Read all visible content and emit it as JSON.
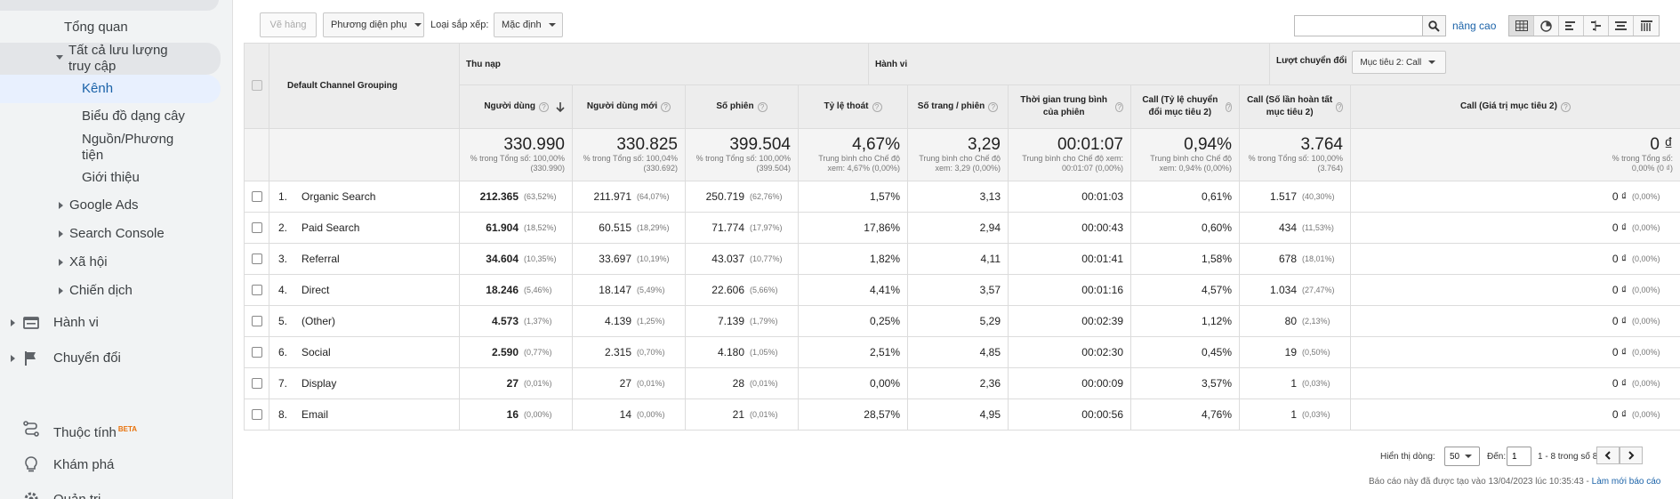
{
  "sidebar": {
    "items": {
      "overview": "Tổng quan",
      "all_traffic": "Tất cả lưu lượng truy cập",
      "channels": "Kênh",
      "treemaps": "Biểu đồ dạng cây",
      "source_medium": "Nguồn/Phương tiện",
      "referrals": "Giới thiệu",
      "google_ads": "Google Ads",
      "search_console": "Search Console",
      "social": "Xã hội",
      "campaigns": "Chiến dịch",
      "behavior": "Hành vi",
      "conversions": "Chuyển đổi",
      "attribution": "Thuộc tính",
      "attribution_badge": "BETA",
      "discover": "Khám phá",
      "admin": "Quản trị"
    }
  },
  "toolbar": {
    "plot_rows": "Vẽ hàng",
    "secondary_dimension": "Phương diện phụ",
    "sort_type_label": "Loại sắp xếp:",
    "sort_type_value": "Mặc định",
    "search_value": "",
    "advanced": "nâng cao",
    "views": [
      "table-view-icon",
      "pie-view-icon",
      "performance-view-icon",
      "comparison-view-icon",
      "term-cloud-view-icon",
      "pivot-view-icon"
    ]
  },
  "table": {
    "dimension_header": "Default Channel Grouping",
    "groups": {
      "acquisition": "Thu nạp",
      "behavior": "Hành vi",
      "conversions": "Lượt chuyển đổi",
      "goal_select": "Mục tiêu 2: Call"
    },
    "columns": [
      "Người dùng",
      "Người dùng mới",
      "Số phiên",
      "Tỷ lệ thoát",
      "Số trang / phiên",
      "Thời gian trung bình của phiên",
      "Call (Tỷ lệ chuyển đổi mục tiêu 2)",
      "Call (Số lần hoàn tất mục tiêu 2)",
      "Call (Giá trị mục tiêu 2)"
    ],
    "totals": [
      {
        "value": "330.990",
        "sub1": "% trong Tổng số: 100,00%",
        "sub2": "(330.990)"
      },
      {
        "value": "330.825",
        "sub1": "% trong Tổng số: 100,04%",
        "sub2": "(330.692)"
      },
      {
        "value": "399.504",
        "sub1": "% trong Tổng số: 100,00%",
        "sub2": "(399.504)"
      },
      {
        "value": "4,67%",
        "sub1": "Trung bình cho Chế độ",
        "sub2": "xem: 4,67% (0,00%)"
      },
      {
        "value": "3,29",
        "sub1": "Trung bình cho Chế độ",
        "sub2": "xem: 3,29 (0,00%)"
      },
      {
        "value": "00:01:07",
        "sub1": "Trung bình cho Chế độ xem:",
        "sub2": "00:01:07 (0,00%)"
      },
      {
        "value": "0,94%",
        "sub1": "Trung bình cho Chế độ",
        "sub2": "xem: 0,94% (0,00%)"
      },
      {
        "value": "3.764",
        "sub1": "% trong Tổng số: 100,00%",
        "sub2": "(3.764)"
      },
      {
        "value": "0 ₫",
        "sub1": "% trong Tổng số:",
        "sub2": "0,00% (0 ₫)"
      }
    ],
    "rows": [
      {
        "idx": "1.",
        "name": "Organic Search",
        "users": "212.365",
        "users_pct": "(63,52%)",
        "new_users": "211.971",
        "new_users_pct": "(64,07%)",
        "sessions": "250.719",
        "sessions_pct": "(62,76%)",
        "bounce": "1,57%",
        "pages": "3,13",
        "duration": "00:01:03",
        "conv_rate": "0,61%",
        "completions": "1.517",
        "completions_pct": "(40,30%)",
        "value": "0 ₫",
        "value_pct": "(0,00%)"
      },
      {
        "idx": "2.",
        "name": "Paid Search",
        "users": "61.904",
        "users_pct": "(18,52%)",
        "new_users": "60.515",
        "new_users_pct": "(18,29%)",
        "sessions": "71.774",
        "sessions_pct": "(17,97%)",
        "bounce": "17,86%",
        "pages": "2,94",
        "duration": "00:00:43",
        "conv_rate": "0,60%",
        "completions": "434",
        "completions_pct": "(11,53%)",
        "value": "0 ₫",
        "value_pct": "(0,00%)"
      },
      {
        "idx": "3.",
        "name": "Referral",
        "users": "34.604",
        "users_pct": "(10,35%)",
        "new_users": "33.697",
        "new_users_pct": "(10,19%)",
        "sessions": "43.037",
        "sessions_pct": "(10,77%)",
        "bounce": "1,82%",
        "pages": "4,11",
        "duration": "00:01:41",
        "conv_rate": "1,58%",
        "completions": "678",
        "completions_pct": "(18,01%)",
        "value": "0 ₫",
        "value_pct": "(0,00%)"
      },
      {
        "idx": "4.",
        "name": "Direct",
        "users": "18.246",
        "users_pct": "(5,46%)",
        "new_users": "18.147",
        "new_users_pct": "(5,49%)",
        "sessions": "22.606",
        "sessions_pct": "(5,66%)",
        "bounce": "4,41%",
        "pages": "3,57",
        "duration": "00:01:16",
        "conv_rate": "4,57%",
        "completions": "1.034",
        "completions_pct": "(27,47%)",
        "value": "0 ₫",
        "value_pct": "(0,00%)"
      },
      {
        "idx": "5.",
        "name": "(Other)",
        "users": "4.573",
        "users_pct": "(1,37%)",
        "new_users": "4.139",
        "new_users_pct": "(1,25%)",
        "sessions": "7.139",
        "sessions_pct": "(1,79%)",
        "bounce": "0,25%",
        "pages": "5,29",
        "duration": "00:02:39",
        "conv_rate": "1,12%",
        "completions": "80",
        "completions_pct": "(2,13%)",
        "value": "0 ₫",
        "value_pct": "(0,00%)"
      },
      {
        "idx": "6.",
        "name": "Social",
        "users": "2.590",
        "users_pct": "(0,77%)",
        "new_users": "2.315",
        "new_users_pct": "(0,70%)",
        "sessions": "4.180",
        "sessions_pct": "(1,05%)",
        "bounce": "2,51%",
        "pages": "4,85",
        "duration": "00:02:30",
        "conv_rate": "0,45%",
        "completions": "19",
        "completions_pct": "(0,50%)",
        "value": "0 ₫",
        "value_pct": "(0,00%)"
      },
      {
        "idx": "7.",
        "name": "Display",
        "users": "27",
        "users_pct": "(0,01%)",
        "new_users": "27",
        "new_users_pct": "(0,01%)",
        "sessions": "28",
        "sessions_pct": "(0,01%)",
        "bounce": "0,00%",
        "pages": "2,36",
        "duration": "00:00:09",
        "conv_rate": "3,57%",
        "completions": "1",
        "completions_pct": "(0,03%)",
        "value": "0 ₫",
        "value_pct": "(0,00%)"
      },
      {
        "idx": "8.",
        "name": "Email",
        "users": "16",
        "users_pct": "(0,00%)",
        "new_users": "14",
        "new_users_pct": "(0,00%)",
        "sessions": "21",
        "sessions_pct": "(0,01%)",
        "bounce": "28,57%",
        "pages": "4,95",
        "duration": "00:00:56",
        "conv_rate": "4,76%",
        "completions": "1",
        "completions_pct": "(0,03%)",
        "value": "0 ₫",
        "value_pct": "(0,00%)"
      }
    ]
  },
  "footer": {
    "rows_label": "Hiển thị dòng:",
    "rows_value": "50",
    "goto_label": "Đến:",
    "goto_value": "1",
    "range": "1 - 8 trong số 8",
    "report_note": "Báo cáo này đã được tạo vào 13/04/2023 lúc 10:35:43 -",
    "refresh": "Làm mới báo cáo"
  },
  "colors": {
    "link": "#1a62a8",
    "sidebar_bg": "#f1f3f4",
    "active_bg": "#e8f0fe",
    "header_bg": "#ededed"
  }
}
